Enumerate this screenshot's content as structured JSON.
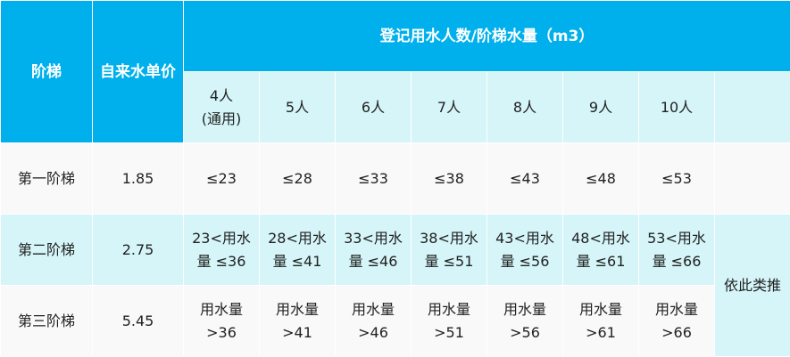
{
  "colors": {
    "header": "#00b0ec",
    "light": "#d5f5f8",
    "row": "#f9f9f9"
  },
  "header": {
    "tier": "阶梯",
    "price": "自来水单价",
    "group": "登记用水人数/阶梯水量（m3）",
    "people": [
      [
        "4人",
        "(通用)"
      ],
      [
        "5人"
      ],
      [
        "6人"
      ],
      [
        "7人"
      ],
      [
        "8人"
      ],
      [
        "9人"
      ],
      [
        "10人"
      ]
    ]
  },
  "rows": [
    {
      "tier": "第一阶梯",
      "price": "1.85",
      "cells": [
        [
          "≤23"
        ],
        [
          "≤28"
        ],
        [
          "≤33"
        ],
        [
          "≤38"
        ],
        [
          "≤43"
        ],
        [
          "≤48"
        ],
        [
          "≤53"
        ]
      ]
    },
    {
      "tier": "第二阶梯",
      "price": "2.75",
      "cells": [
        [
          "23<用水",
          "量 ≤36"
        ],
        [
          "28<用水",
          "量 ≤41"
        ],
        [
          "33<用水",
          "量 ≤46"
        ],
        [
          "38<用水",
          "量 ≤51"
        ],
        [
          "43<用水",
          "量 ≤56"
        ],
        [
          "48<用水",
          "量 ≤61"
        ],
        [
          "53<用水",
          "量 ≤66"
        ]
      ]
    },
    {
      "tier": "第三阶梯",
      "price": "5.45",
      "cells": [
        [
          "用水量",
          ">36"
        ],
        [
          "用水量",
          ">41"
        ],
        [
          "用水量",
          ">46"
        ],
        [
          "用水量",
          ">51"
        ],
        [
          "用水量",
          ">56"
        ],
        [
          "用水量",
          ">61"
        ],
        [
          "用水量",
          ">66"
        ]
      ]
    }
  ],
  "etc": "依此类推"
}
